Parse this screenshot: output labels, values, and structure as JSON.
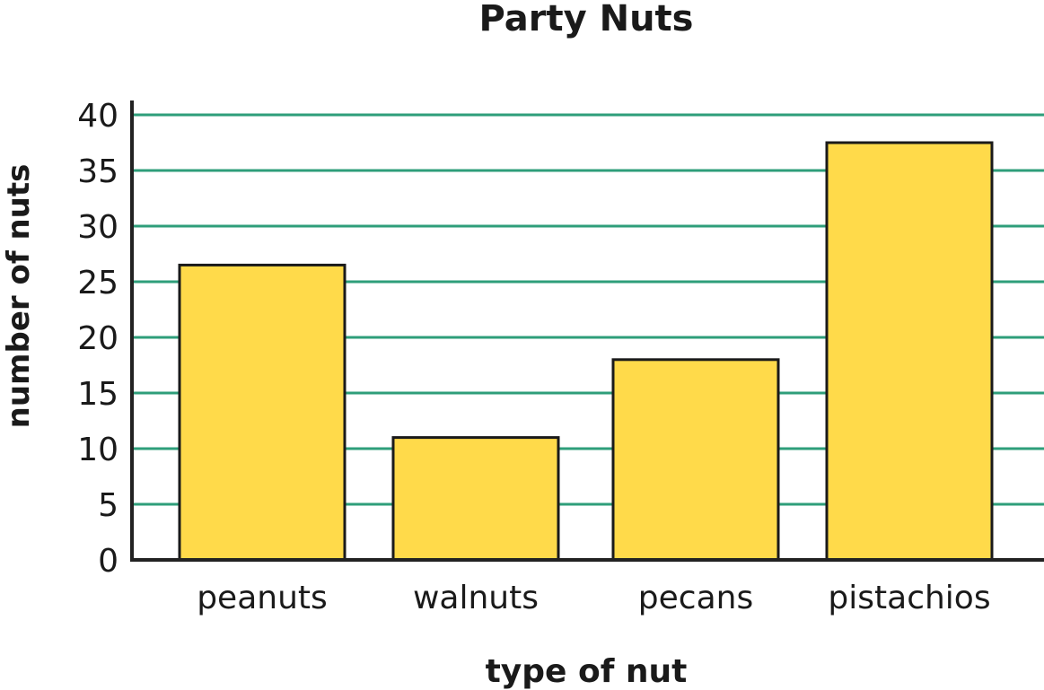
{
  "chart_data": {
    "type": "bar",
    "title": "Party Nuts",
    "xlabel": "type of nut",
    "ylabel": "number of nuts",
    "categories": [
      "peanuts",
      "walnuts",
      "pecans",
      "pistachios"
    ],
    "values": [
      26.5,
      11,
      18,
      37.5
    ],
    "ylim": [
      0,
      40
    ],
    "yticks": [
      0,
      5,
      10,
      15,
      20,
      25,
      30,
      35,
      40
    ],
    "grid": true,
    "colors": {
      "bar": "#FFDA4A",
      "grid": "#2E9E7A",
      "axis": "#222222"
    }
  }
}
